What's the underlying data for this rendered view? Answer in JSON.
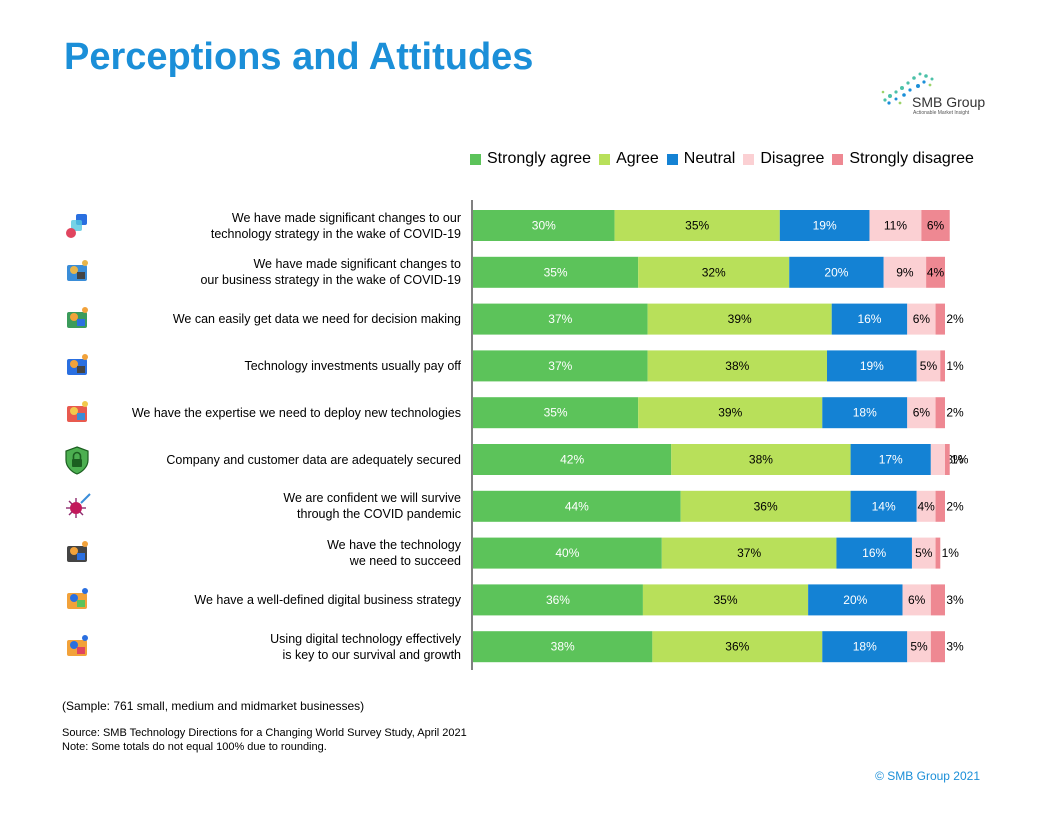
{
  "page": {
    "title": "Perceptions and Attitudes",
    "logo_name": "SMB Group",
    "logo_tagline": "Actionable Market Insight",
    "sample_note": "(Sample: 761 small, medium and midmarket businesses)",
    "source_note": "Source: SMB Technology Directions for a Changing World Survey Study, April 2021",
    "rounding_note": "Note: Some totals do not equal 100% due to rounding.",
    "copyright": "© SMB Group 2021"
  },
  "legend": [
    {
      "name": "Strongly agree",
      "color": "#5cc35a"
    },
    {
      "name": "Agree",
      "color": "#b8e05a"
    },
    {
      "name": "Neutral",
      "color": "#1482d4"
    },
    {
      "name": "Disagree",
      "color": "#fbd0d3"
    },
    {
      "name": "Strongly disagree",
      "color": "#ee8892"
    }
  ],
  "rows": [
    {
      "label_lines": [
        "We have made significant changes to our",
        "technology strategy in the wake of COVID-19"
      ],
      "icon": "apps-icon"
    },
    {
      "label_lines": [
        "We have made significant changes to",
        "our business strategy in the wake of COVID-19"
      ],
      "icon": "strategy-icon"
    },
    {
      "label_lines": [
        "We can easily get data we need for decision making"
      ],
      "icon": "data-person-icon"
    },
    {
      "label_lines": [
        "Technology investments usually pay off"
      ],
      "icon": "investment-icon"
    },
    {
      "label_lines": [
        "We have the expertise we need to deploy new technologies"
      ],
      "icon": "expert-icon"
    },
    {
      "label_lines": [
        "Company and customer data are adequately secured"
      ],
      "icon": "shield-lock-icon"
    },
    {
      "label_lines": [
        "We are confident we will survive",
        "through the COVID pandemic"
      ],
      "icon": "virus-icon"
    },
    {
      "label_lines": [
        "We have the technology",
        "we need to succeed"
      ],
      "icon": "trophy-icon"
    },
    {
      "label_lines": [
        "We have a well-defined digital business strategy"
      ],
      "icon": "digital-strategy-icon"
    },
    {
      "label_lines": [
        "Using digital technology effectively",
        "is key to our survival and growth"
      ],
      "icon": "digital-health-icon"
    }
  ],
  "chart_data": {
    "type": "bar",
    "orientation": "horizontal",
    "stacked": true,
    "xlim": [
      0,
      100
    ],
    "unit": "%",
    "categories": [
      "We have made significant changes to our technology strategy in the wake of COVID-19",
      "We have made significant changes to our business strategy in the wake of COVID-19",
      "We can easily get data we need for decision making",
      "Technology investments usually pay off",
      "We have the expertise we need to deploy new technologies",
      "Company and customer data are adequately secured",
      "We are confident we will survive through the COVID pandemic",
      "We have the technology we need to succeed",
      "We have a well-defined digital business strategy",
      "Using digital technology effectively is key to our survival and growth"
    ],
    "series": [
      {
        "name": "Strongly agree",
        "color": "#5cc35a",
        "values": [
          30,
          35,
          37,
          37,
          35,
          42,
          44,
          40,
          36,
          38
        ]
      },
      {
        "name": "Agree",
        "color": "#b8e05a",
        "values": [
          35,
          32,
          39,
          38,
          39,
          38,
          36,
          37,
          35,
          36
        ]
      },
      {
        "name": "Neutral",
        "color": "#1482d4",
        "values": [
          19,
          20,
          16,
          19,
          18,
          17,
          14,
          16,
          20,
          18
        ]
      },
      {
        "name": "Disagree",
        "color": "#fbd0d3",
        "values": [
          11,
          9,
          6,
          5,
          6,
          3,
          4,
          5,
          6,
          5
        ]
      },
      {
        "name": "Strongly disagree",
        "color": "#ee8892",
        "values": [
          6,
          4,
          2,
          1,
          2,
          1,
          2,
          1,
          3,
          3
        ]
      }
    ],
    "legend_position": "top",
    "grid": false
  }
}
